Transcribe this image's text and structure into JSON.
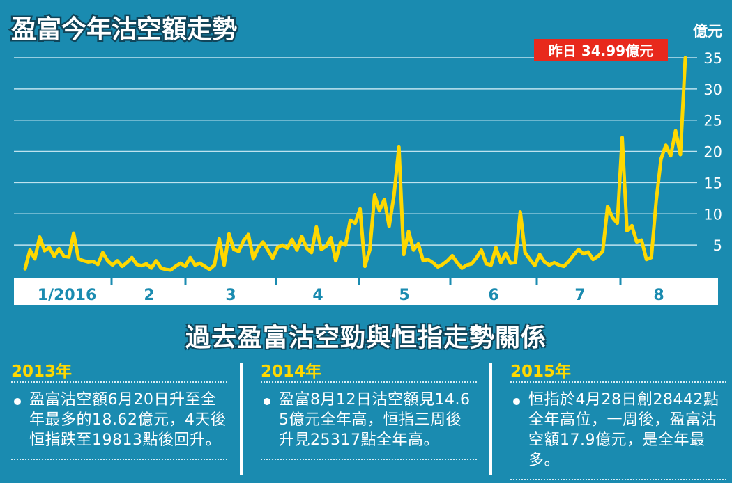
{
  "chart_data": {
    "type": "line",
    "title": "盈富今年沽空額走勢",
    "ylabel": "億元",
    "ylim": [
      0,
      36
    ],
    "yticks": [
      5,
      10,
      15,
      20,
      25,
      30,
      35
    ],
    "grid": true,
    "month_labels": [
      "1/2016",
      "2",
      "3",
      "4",
      "5",
      "6",
      "7",
      "8"
    ],
    "annotation": "昨日 34.99億元",
    "series": [
      {
        "values": [
          1.2,
          4.2,
          2.8,
          6.3,
          4.1,
          4.6,
          3.2,
          4.4,
          3.2,
          3.1,
          6.9,
          2.8,
          2.5,
          2.3,
          2.4,
          1.9,
          3.8,
          2.5,
          1.8,
          2.5,
          1.6,
          2.2,
          3.0,
          1.9,
          1.7,
          2.0,
          1.3,
          2.5,
          1.3,
          1.1,
          1.0,
          1.6,
          2.1,
          1.6,
          3.0,
          1.8,
          2.1,
          1.6,
          1.1,
          1.8,
          6.0,
          1.8,
          6.8,
          4.3,
          4.0,
          5.7,
          6.7,
          2.8,
          4.5,
          5.5,
          4.2,
          2.9,
          4.6,
          5.0,
          4.5,
          5.9,
          4.2,
          6.4,
          4.5,
          3.8,
          7.9,
          4.3,
          4.8,
          6.2,
          2.5,
          5.5,
          5.0,
          9.0,
          8.5,
          10.8,
          1.6,
          4.2,
          13.0,
          10.5,
          12.3,
          8.0,
          13.0,
          20.7,
          3.5,
          7.2,
          4.2,
          5.2,
          2.5,
          2.7,
          2.2,
          1.5,
          1.9,
          2.5,
          3.3,
          2.2,
          1.3,
          1.8,
          2.0,
          3.0,
          4.2,
          2.0,
          1.8,
          4.6,
          2.2,
          3.7,
          2.1,
          2.2,
          10.3,
          3.8,
          2.7,
          1.7,
          3.5,
          2.3,
          1.8,
          2.2,
          1.8,
          1.6,
          2.4,
          3.4,
          4.3,
          3.6,
          3.9,
          2.7,
          3.2,
          4.0,
          11.2,
          9.4,
          8.5,
          22.2,
          7.3,
          8.1,
          5.5,
          5.8,
          2.7,
          3.0,
          12.0,
          18.8,
          21.0,
          19.3,
          23.3,
          19.5,
          34.99
        ]
      }
    ]
  },
  "text": {
    "sub_title": "過去盈富沽空勁與恒指走勢關係",
    "panels": [
      {
        "year": "2013年",
        "body": "盈富沽空額6月20日升至全年最多的18.62億元，4天後恒指跌至19813點後回升。"
      },
      {
        "year": "2014年",
        "body": "盈富8月12日沽空額見14.65億元全年高，恒指三周後升見25317點全年高。"
      },
      {
        "year": "2015年",
        "body": "恒指於4月28日創28442點全年高位，一周後，盈富沽空額17.9億元，是全年最多。"
      }
    ]
  },
  "colors": {
    "background": "#1a8bb0",
    "line": "#ffd800",
    "annotation_box": "#e8291c",
    "axis_band": "#ffffff",
    "gridline": "#bfe3ef",
    "year_text": "#ffd800"
  }
}
